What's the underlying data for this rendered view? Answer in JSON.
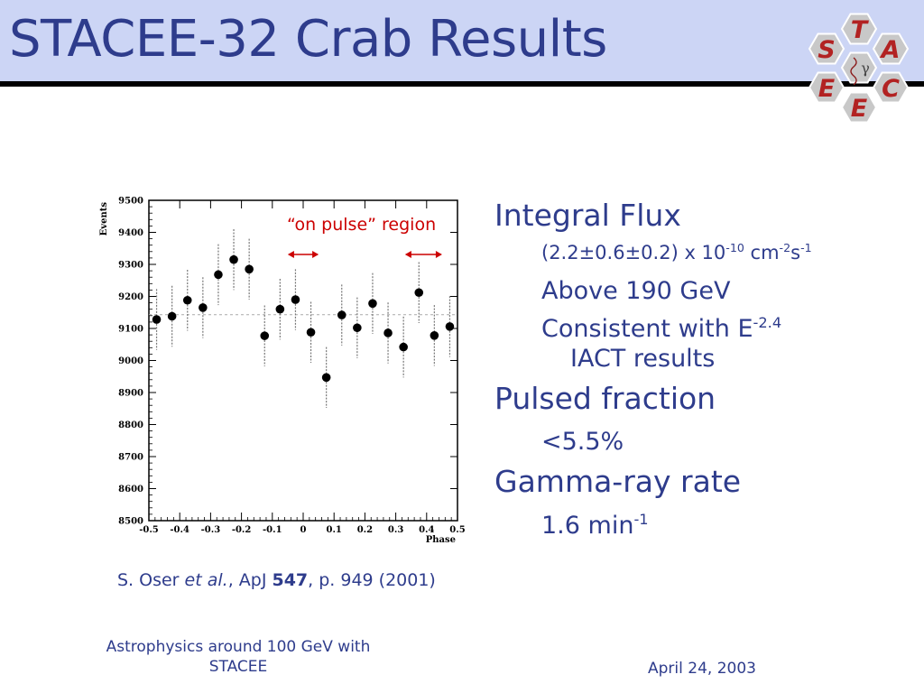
{
  "slide": {
    "title": "STACEE-32 Crab Results",
    "annotation": "“on pulse” region",
    "citation": {
      "author": "S. Oser ",
      "etal": "et al.",
      "journal": ", ApJ ",
      "volume": "547",
      "pages": ", p. 949 (2001)"
    }
  },
  "logo": {
    "letters": [
      "S",
      "T",
      "A",
      "C",
      "E",
      "E"
    ],
    "center": "γ"
  },
  "bullets": {
    "integral_flux": "Integral Flux",
    "flux_value_main": "(2.2±0.6±0.2) x 10",
    "flux_value_exp": "-10",
    "flux_unit_cm": " cm",
    "flux_unit_cm_exp": "-2",
    "flux_unit_s": "s",
    "flux_unit_s_exp": "-1",
    "above": "Above 190 GeV",
    "consistent_main": "Consistent with E",
    "consistent_exp": "-2.4",
    "consistent_cont": "IACT results",
    "pulsed_fraction": "Pulsed fraction",
    "pulsed_value": "<5.5%",
    "gamma_rate": "Gamma-ray rate",
    "rate_value": "1.6 min",
    "rate_exp": "-1"
  },
  "footer": {
    "left": "Astrophysics around 100 GeV with STACEE",
    "right": "April 24, 2003"
  },
  "colors": {
    "title": "#2e3c8c",
    "header_bg": "#ccd5f5",
    "annotation": "#cc0000",
    "logo_hex": "#c8c8c8",
    "logo_letter": "#b22222"
  },
  "chart_data": {
    "type": "scatter",
    "ylabel": "Events",
    "xlabel": "Phase",
    "xlim": [
      -0.5,
      0.5
    ],
    "ylim": [
      8500,
      9500
    ],
    "xticks": [
      -0.5,
      -0.4,
      -0.3,
      -0.2,
      -0.1,
      0,
      0.1,
      0.2,
      0.3,
      0.4,
      0.5
    ],
    "xtick_labels": [
      "-0.5",
      "-0.4",
      "-0.3",
      "-0.2",
      "-0.1",
      "0",
      "0.1",
      "0.2",
      "0.3",
      "0.4",
      "0.5"
    ],
    "yticks": [
      8500,
      8600,
      8700,
      8800,
      8900,
      9000,
      9100,
      9200,
      9300,
      9400,
      9500
    ],
    "ytick_labels": [
      "8500",
      "8600",
      "8700",
      "8800",
      "8900",
      "9000",
      "9100",
      "9200",
      "9300",
      "9400",
      "9500"
    ],
    "mean_level": 9143,
    "points": [
      {
        "x": -0.475,
        "y": 9128,
        "err": 95
      },
      {
        "x": -0.425,
        "y": 9138,
        "err": 95
      },
      {
        "x": -0.375,
        "y": 9188,
        "err": 95
      },
      {
        "x": -0.325,
        "y": 9165,
        "err": 95
      },
      {
        "x": -0.275,
        "y": 9268,
        "err": 95
      },
      {
        "x": -0.225,
        "y": 9315,
        "err": 95
      },
      {
        "x": -0.175,
        "y": 9285,
        "err": 95
      },
      {
        "x": -0.125,
        "y": 9077,
        "err": 95
      },
      {
        "x": -0.075,
        "y": 9160,
        "err": 95
      },
      {
        "x": -0.025,
        "y": 9190,
        "err": 95
      },
      {
        "x": 0.025,
        "y": 9088,
        "err": 95
      },
      {
        "x": 0.075,
        "y": 8947,
        "err": 95
      },
      {
        "x": 0.125,
        "y": 9142,
        "err": 95
      },
      {
        "x": 0.175,
        "y": 9102,
        "err": 95
      },
      {
        "x": 0.225,
        "y": 9178,
        "err": 95
      },
      {
        "x": 0.275,
        "y": 9086,
        "err": 95
      },
      {
        "x": 0.325,
        "y": 9042,
        "err": 95
      },
      {
        "x": 0.375,
        "y": 9212,
        "err": 95
      },
      {
        "x": 0.425,
        "y": 9078,
        "err": 95
      },
      {
        "x": 0.475,
        "y": 9106,
        "err": 95
      }
    ],
    "on_pulse_regions": [
      [
        -0.05,
        0.05
      ],
      [
        0.33,
        0.45
      ]
    ]
  }
}
